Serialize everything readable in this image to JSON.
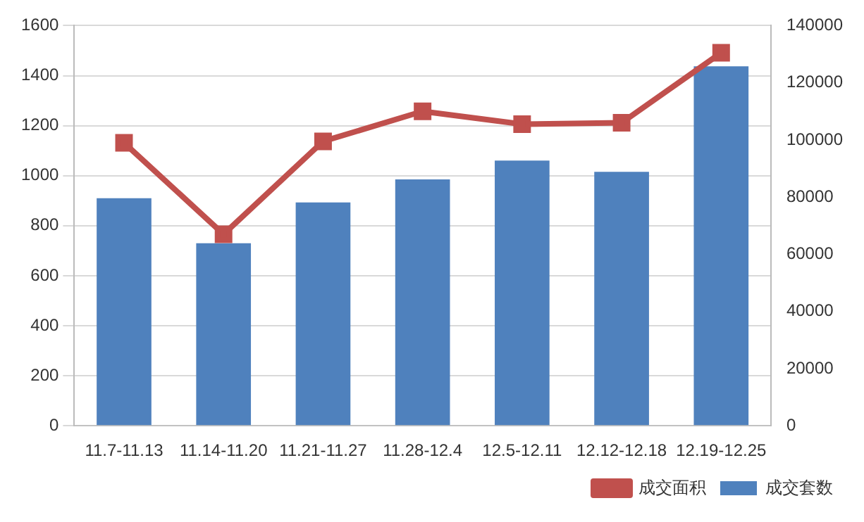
{
  "chart_data": {
    "type": "bar",
    "categories": [
      "11.7-11.13",
      "11.14-11.20",
      "11.21-11.27",
      "11.28-12.4",
      "12.5-12.11",
      "12.12-12.18",
      "12.19-12.25"
    ],
    "series": [
      {
        "name": "成交套数",
        "color": "#4f81bd",
        "values": [
          910,
          730,
          893,
          985,
          1060,
          1015,
          1437
        ]
      },
      {
        "name": "成交面积",
        "type": "line",
        "axis": "y2",
        "color": "#c0504d",
        "values": [
          99000,
          67000,
          99500,
          110000,
          105500,
          106000,
          130500
        ]
      }
    ],
    "ylim": [
      0,
      1600
    ],
    "yticks": [
      0,
      200,
      400,
      600,
      800,
      1000,
      1200,
      1400,
      1600
    ],
    "y2lim": [
      0,
      140000
    ],
    "y2ticks": [
      0,
      20000,
      40000,
      60000,
      80000,
      100000,
      120000,
      140000
    ],
    "grid": "y",
    "legend": "bottom right",
    "marker": "square"
  }
}
